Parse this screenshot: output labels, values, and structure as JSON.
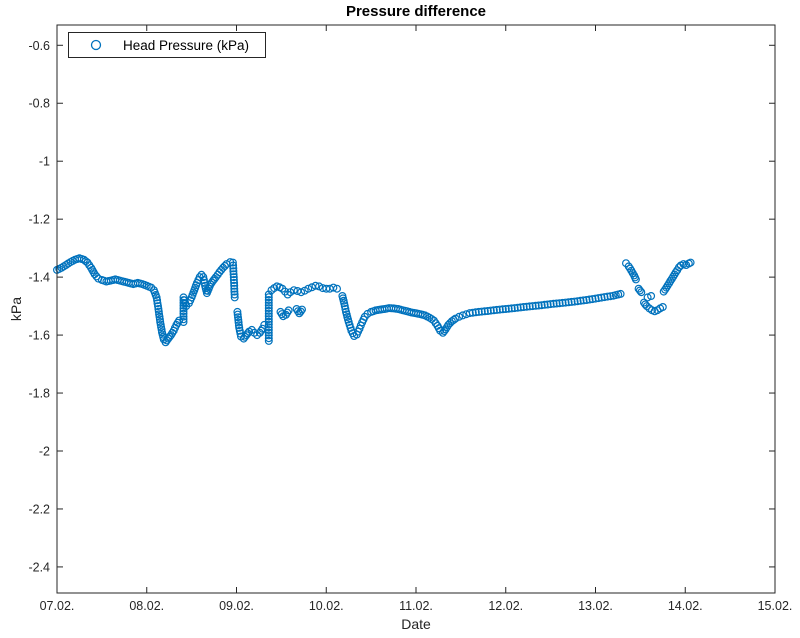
{
  "title": "Pressure difference",
  "colors": {
    "marker": "#0072BD",
    "axis": "#262626",
    "background": "#FFFFFF"
  },
  "legend": {
    "position": "northwest"
  },
  "chart_data": {
    "type": "scatter",
    "title": "Pressure difference",
    "xlabel": "Date",
    "ylabel": "kPa",
    "xlim_days": [
      7,
      15
    ],
    "ylim": [
      -2.49,
      -0.53
    ],
    "grid": false,
    "legend_position": "northwest",
    "x_ticks": [
      {
        "value": 7,
        "label": "07.02."
      },
      {
        "value": 8,
        "label": "08.02."
      },
      {
        "value": 9,
        "label": "09.02."
      },
      {
        "value": 10,
        "label": "10.02."
      },
      {
        "value": 11,
        "label": "11.02."
      },
      {
        "value": 12,
        "label": "12.02."
      },
      {
        "value": 13,
        "label": "13.02."
      },
      {
        "value": 14,
        "label": "14.02."
      },
      {
        "value": 15,
        "label": "15.02."
      }
    ],
    "y_ticks": [
      {
        "value": -0.6,
        "label": "-0.6"
      },
      {
        "value": -0.8,
        "label": "-0.8"
      },
      {
        "value": -1.0,
        "label": "-1"
      },
      {
        "value": -1.2,
        "label": "-1.2"
      },
      {
        "value": -1.4,
        "label": "-1.4"
      },
      {
        "value": -1.6,
        "label": "-1.6"
      },
      {
        "value": -1.8,
        "label": "-1.8"
      },
      {
        "value": -2.0,
        "label": "-2"
      },
      {
        "value": -2.2,
        "label": "-2.2"
      },
      {
        "value": -2.4,
        "label": "-2.4"
      }
    ],
    "series": [
      {
        "name": "Head Pressure (kPa)",
        "marker": "o",
        "color": "#0072BD",
        "segments": [
          [
            [
              7.0,
              -1.375
            ],
            [
              7.05,
              -1.368
            ],
            [
              7.1,
              -1.358
            ],
            [
              7.15,
              -1.348
            ],
            [
              7.2,
              -1.34
            ],
            [
              7.25,
              -1.335
            ],
            [
              7.3,
              -1.34
            ],
            [
              7.34,
              -1.35
            ],
            [
              7.38,
              -1.368
            ],
            [
              7.42,
              -1.39
            ],
            [
              7.46,
              -1.405
            ],
            [
              7.5,
              -1.41
            ],
            [
              7.55,
              -1.415
            ],
            [
              7.6,
              -1.412
            ],
            [
              7.65,
              -1.408
            ],
            [
              7.7,
              -1.412
            ],
            [
              7.75,
              -1.416
            ],
            [
              7.8,
              -1.42
            ],
            [
              7.85,
              -1.424
            ],
            [
              7.9,
              -1.42
            ],
            [
              7.95,
              -1.424
            ],
            [
              8.0,
              -1.43
            ],
            [
              8.05,
              -1.436
            ],
            [
              8.08,
              -1.445
            ],
            [
              8.11,
              -1.47
            ],
            [
              8.13,
              -1.51
            ],
            [
              8.15,
              -1.555
            ],
            [
              8.17,
              -1.59
            ],
            [
              8.19,
              -1.615
            ],
            [
              8.21,
              -1.625
            ],
            [
              8.24,
              -1.612
            ],
            [
              8.27,
              -1.6
            ],
            [
              8.3,
              -1.585
            ],
            [
              8.33,
              -1.565
            ],
            [
              8.36,
              -1.55
            ]
          ],
          [
            [
              8.41,
              -1.555
            ],
            [
              8.41,
              -1.47
            ],
            [
              8.44,
              -1.5
            ],
            [
              8.47,
              -1.49
            ],
            [
              8.5,
              -1.47
            ],
            [
              8.53,
              -1.445
            ],
            [
              8.56,
              -1.42
            ],
            [
              8.59,
              -1.4
            ],
            [
              8.61,
              -1.392
            ],
            [
              8.63,
              -1.4
            ],
            [
              8.65,
              -1.43
            ],
            [
              8.67,
              -1.455
            ],
            [
              8.69,
              -1.44
            ],
            [
              8.71,
              -1.425
            ],
            [
              8.74,
              -1.412
            ],
            [
              8.77,
              -1.4
            ],
            [
              8.81,
              -1.383
            ],
            [
              8.85,
              -1.368
            ],
            [
              8.89,
              -1.355
            ],
            [
              8.93,
              -1.348
            ],
            [
              8.96,
              -1.35
            ],
            [
              8.97,
              -1.4
            ],
            [
              8.98,
              -1.47
            ]
          ],
          [
            [
              9.01,
              -1.52
            ],
            [
              9.03,
              -1.575
            ],
            [
              9.05,
              -1.605
            ],
            [
              9.08,
              -1.612
            ],
            [
              9.11,
              -1.6
            ],
            [
              9.14,
              -1.588
            ],
            [
              9.17,
              -1.582
            ],
            [
              9.2,
              -1.592
            ],
            [
              9.23,
              -1.6
            ],
            [
              9.26,
              -1.592
            ],
            [
              9.29,
              -1.578
            ],
            [
              9.31,
              -1.565
            ]
          ],
          [
            [
              9.36,
              -1.62
            ],
            [
              9.36,
              -1.46
            ]
          ],
          [
            [
              9.39,
              -1.445
            ],
            [
              9.42,
              -1.438
            ],
            [
              9.45,
              -1.432
            ],
            [
              9.48,
              -1.435
            ],
            [
              9.51,
              -1.44
            ],
            [
              9.54,
              -1.45
            ],
            [
              9.57,
              -1.46
            ]
          ],
          [
            [
              9.49,
              -1.52
            ],
            [
              9.52,
              -1.535
            ],
            [
              9.55,
              -1.53
            ],
            [
              9.58,
              -1.515
            ]
          ],
          [
            [
              9.6,
              -1.452
            ],
            [
              9.64,
              -1.445
            ],
            [
              9.68,
              -1.448
            ],
            [
              9.72,
              -1.452
            ],
            [
              9.76,
              -1.447
            ],
            [
              9.8,
              -1.44
            ],
            [
              9.84,
              -1.435
            ],
            [
              9.88,
              -1.43
            ],
            [
              9.92,
              -1.432
            ],
            [
              9.96,
              -1.438
            ],
            [
              10.0,
              -1.44
            ],
            [
              10.04,
              -1.44
            ],
            [
              10.08,
              -1.436
            ],
            [
              10.12,
              -1.44
            ]
          ],
          [
            [
              9.67,
              -1.51
            ],
            [
              9.7,
              -1.525
            ],
            [
              9.73,
              -1.512
            ]
          ],
          [
            [
              10.18,
              -1.465
            ],
            [
              10.2,
              -1.49
            ],
            [
              10.22,
              -1.52
            ],
            [
              10.25,
              -1.555
            ],
            [
              10.28,
              -1.585
            ],
            [
              10.31,
              -1.603
            ],
            [
              10.34,
              -1.598
            ],
            [
              10.37,
              -1.578
            ],
            [
              10.4,
              -1.556
            ],
            [
              10.43,
              -1.537
            ],
            [
              10.46,
              -1.527
            ],
            [
              10.5,
              -1.52
            ],
            [
              10.55,
              -1.515
            ],
            [
              10.6,
              -1.512
            ],
            [
              10.65,
              -1.51
            ],
            [
              10.7,
              -1.507
            ],
            [
              10.75,
              -1.508
            ],
            [
              10.8,
              -1.51
            ],
            [
              10.85,
              -1.514
            ],
            [
              10.9,
              -1.518
            ],
            [
              10.95,
              -1.522
            ],
            [
              11.0,
              -1.525
            ],
            [
              11.05,
              -1.528
            ],
            [
              11.1,
              -1.532
            ],
            [
              11.15,
              -1.54
            ],
            [
              11.2,
              -1.55
            ],
            [
              11.24,
              -1.568
            ],
            [
              11.27,
              -1.585
            ],
            [
              11.3,
              -1.592
            ],
            [
              11.33,
              -1.58
            ],
            [
              11.36,
              -1.565
            ],
            [
              11.4,
              -1.552
            ],
            [
              11.44,
              -1.543
            ],
            [
              11.48,
              -1.537
            ],
            [
              11.52,
              -1.532
            ],
            [
              11.56,
              -1.528
            ],
            [
              11.6,
              -1.524
            ],
            [
              11.7,
              -1.52
            ],
            [
              11.8,
              -1.517
            ],
            [
              11.9,
              -1.513
            ],
            [
              12.0,
              -1.51
            ],
            [
              12.1,
              -1.507
            ],
            [
              12.2,
              -1.503
            ],
            [
              12.3,
              -1.5
            ],
            [
              12.4,
              -1.497
            ],
            [
              12.5,
              -1.493
            ],
            [
              12.6,
              -1.49
            ],
            [
              12.7,
              -1.487
            ],
            [
              12.8,
              -1.483
            ],
            [
              12.9,
              -1.479
            ],
            [
              13.0,
              -1.474
            ],
            [
              13.1,
              -1.469
            ],
            [
              13.2,
              -1.464
            ],
            [
              13.28,
              -1.458
            ]
          ],
          [
            [
              13.34,
              -1.352
            ],
            [
              13.37,
              -1.363
            ],
            [
              13.4,
              -1.378
            ],
            [
              13.43,
              -1.394
            ],
            [
              13.45,
              -1.408
            ]
          ],
          [
            [
              13.48,
              -1.44
            ],
            [
              13.51,
              -1.452
            ]
          ],
          [
            [
              13.54,
              -1.488
            ],
            [
              13.57,
              -1.5
            ],
            [
              13.6,
              -1.508
            ],
            [
              13.63,
              -1.514
            ],
            [
              13.66,
              -1.518
            ],
            [
              13.69,
              -1.514
            ],
            [
              13.72,
              -1.508
            ],
            [
              13.75,
              -1.503
            ]
          ],
          [
            [
              13.58,
              -1.47
            ],
            [
              13.62,
              -1.465
            ]
          ],
          [
            [
              13.76,
              -1.45
            ],
            [
              13.79,
              -1.436
            ],
            [
              13.82,
              -1.421
            ],
            [
              13.85,
              -1.406
            ],
            [
              13.88,
              -1.391
            ],
            [
              13.91,
              -1.376
            ],
            [
              13.93,
              -1.366
            ],
            [
              13.95,
              -1.36
            ],
            [
              13.98,
              -1.355
            ],
            [
              14.01,
              -1.358
            ],
            [
              14.04,
              -1.353
            ],
            [
              14.06,
              -1.35
            ]
          ]
        ]
      }
    ]
  }
}
